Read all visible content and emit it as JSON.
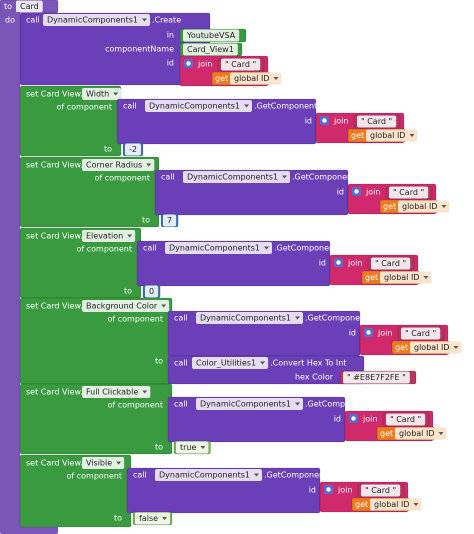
{
  "procedure": {
    "keyword": "to",
    "name": "Card",
    "do": "do"
  },
  "create": {
    "call": "call",
    "component": "DynamicComponents1",
    "method": ".Create",
    "in_label": "in",
    "in_value": "YoutubeVSA",
    "name_label": "componentName",
    "name_value": "Card_View1",
    "id_label": "id",
    "join": "join",
    "text": "\" Card \"",
    "get": "get",
    "variable": "global ID"
  },
  "setters": [
    {
      "set": "set Card View.",
      "property": "Width",
      "of": "of component",
      "call": "call",
      "component": "DynamicComponents1",
      "method": ".GetComponent",
      "id": "id",
      "join": "join",
      "text": "\" Card \"",
      "get": "get",
      "variable": "global ID",
      "to": "to",
      "value": "-2"
    },
    {
      "set": "set Card View.",
      "property": "Corner Radius",
      "of": "of component",
      "call": "call",
      "component": "DynamicComponents1",
      "method": ".GetComponent",
      "id": "id",
      "join": "join",
      "text": "\" Card \"",
      "get": "get",
      "variable": "global ID",
      "to": "to",
      "value": "7"
    },
    {
      "set": "set Card View.",
      "property": "Elevation",
      "of": "of component",
      "call": "call",
      "component": "DynamicComponents1",
      "method": ".GetComponent",
      "id": "id",
      "join": "join",
      "text": "\" Card \"",
      "get": "get",
      "variable": "global ID",
      "to": "to",
      "value": "0"
    },
    {
      "set": "set Card View.",
      "property": "Background Color",
      "of": "of component",
      "call": "call",
      "component": "DynamicComponents1",
      "method": ".GetComponent",
      "id": "id",
      "join": "join",
      "text": "\" Card \"",
      "get": "get",
      "variable": "global ID",
      "to": "to",
      "value": {
        "call": "call",
        "component": "Color_Utilities1",
        "method": ".Convert Hex To Int",
        "param": "hex Color",
        "text": "\" #E8E7F2FE \""
      }
    },
    {
      "set": "set Card View.",
      "property": "Full Clickable",
      "of": "of component",
      "call": "call",
      "component": "DynamicComponents1",
      "method": ".GetComponent",
      "id": "id",
      "join": "join",
      "text": "\" Card \"",
      "get": "get",
      "variable": "global ID",
      "to": "to",
      "value": "true"
    },
    {
      "set": "set Card View.",
      "property": "Visible",
      "of": "of component",
      "call": "call",
      "component": "DynamicComponents1",
      "method": ".GetComponent",
      "id": "id",
      "join": "join",
      "text": "\" Card \"",
      "get": "get",
      "variable": "global ID",
      "to": "to",
      "value": "false"
    }
  ]
}
